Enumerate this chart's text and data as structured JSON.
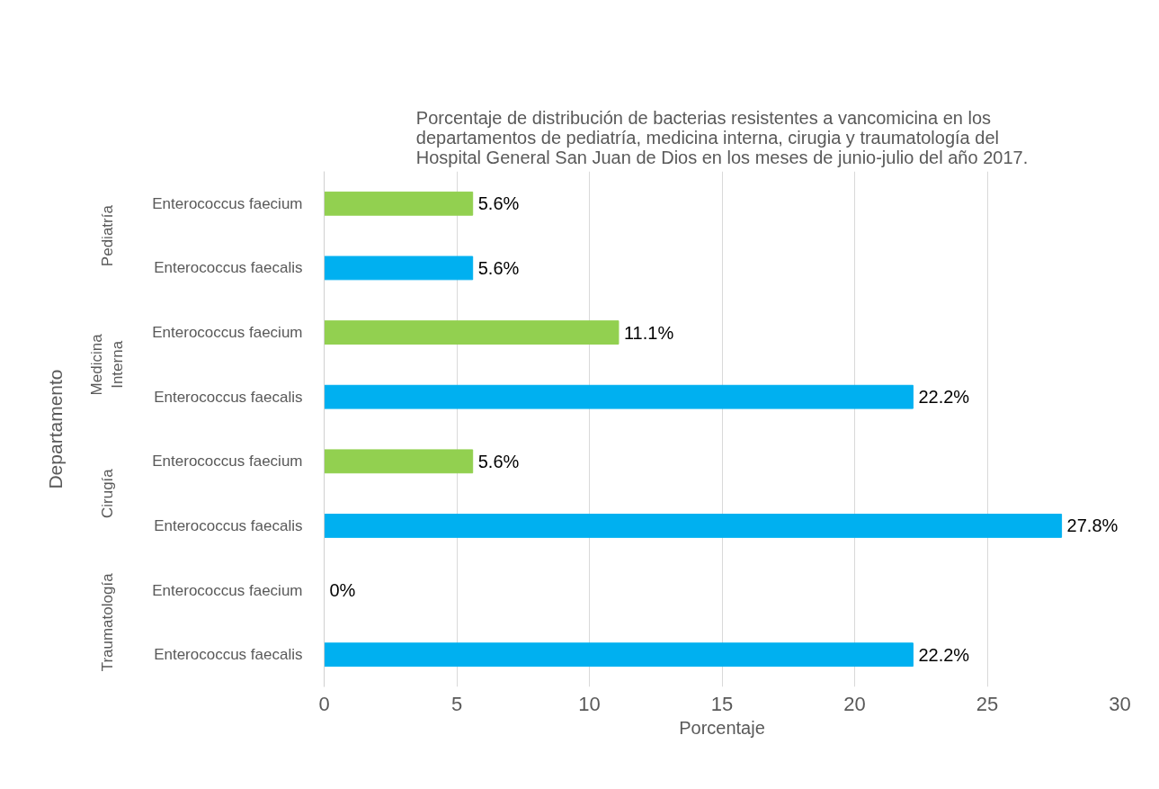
{
  "chart_data": {
    "type": "bar",
    "orientation": "horizontal",
    "title": "Porcentaje de distribución de bacterias resistentes a vancomicina en los departamentos de pediatría, medicina interna, cirugia y traumatología del Hospital General San Juan de Dios en los meses de junio-julio del año 2017.",
    "xlabel": "Porcentaje",
    "ylabel": "Departamento",
    "annotations": [
      "Pediatría",
      "Medicina Interna",
      "Cirugía",
      "Traumatología"
    ],
    "categories": [
      "Enterococcus faecium",
      "Enterococcus faecalis",
      "Enterococcus faecium",
      "Enterococcus faecalis",
      "Enterococcus faecium",
      "Enterococcus faecalis",
      "Enterococcus faecium",
      "Enterococcus faecalis"
    ],
    "values": [
      5.6,
      5.6,
      11.1,
      22.2,
      5.6,
      27.8,
      0,
      22.2
    ],
    "value_labels": [
      "5.6%",
      "5.6%",
      "11.1%",
      "22.2%",
      "5.6%",
      "27.8%",
      "0%",
      "22.2%"
    ],
    "colors": [
      "#92d050",
      "#00b0f0",
      "#92d050",
      "#00b0f0",
      "#92d050",
      "#00b0f0",
      "#92d050",
      "#00b0f0"
    ],
    "xlim": [
      0,
      30
    ],
    "xticks": [
      0,
      5,
      10,
      15,
      20,
      25,
      30
    ],
    "grid": "x"
  }
}
